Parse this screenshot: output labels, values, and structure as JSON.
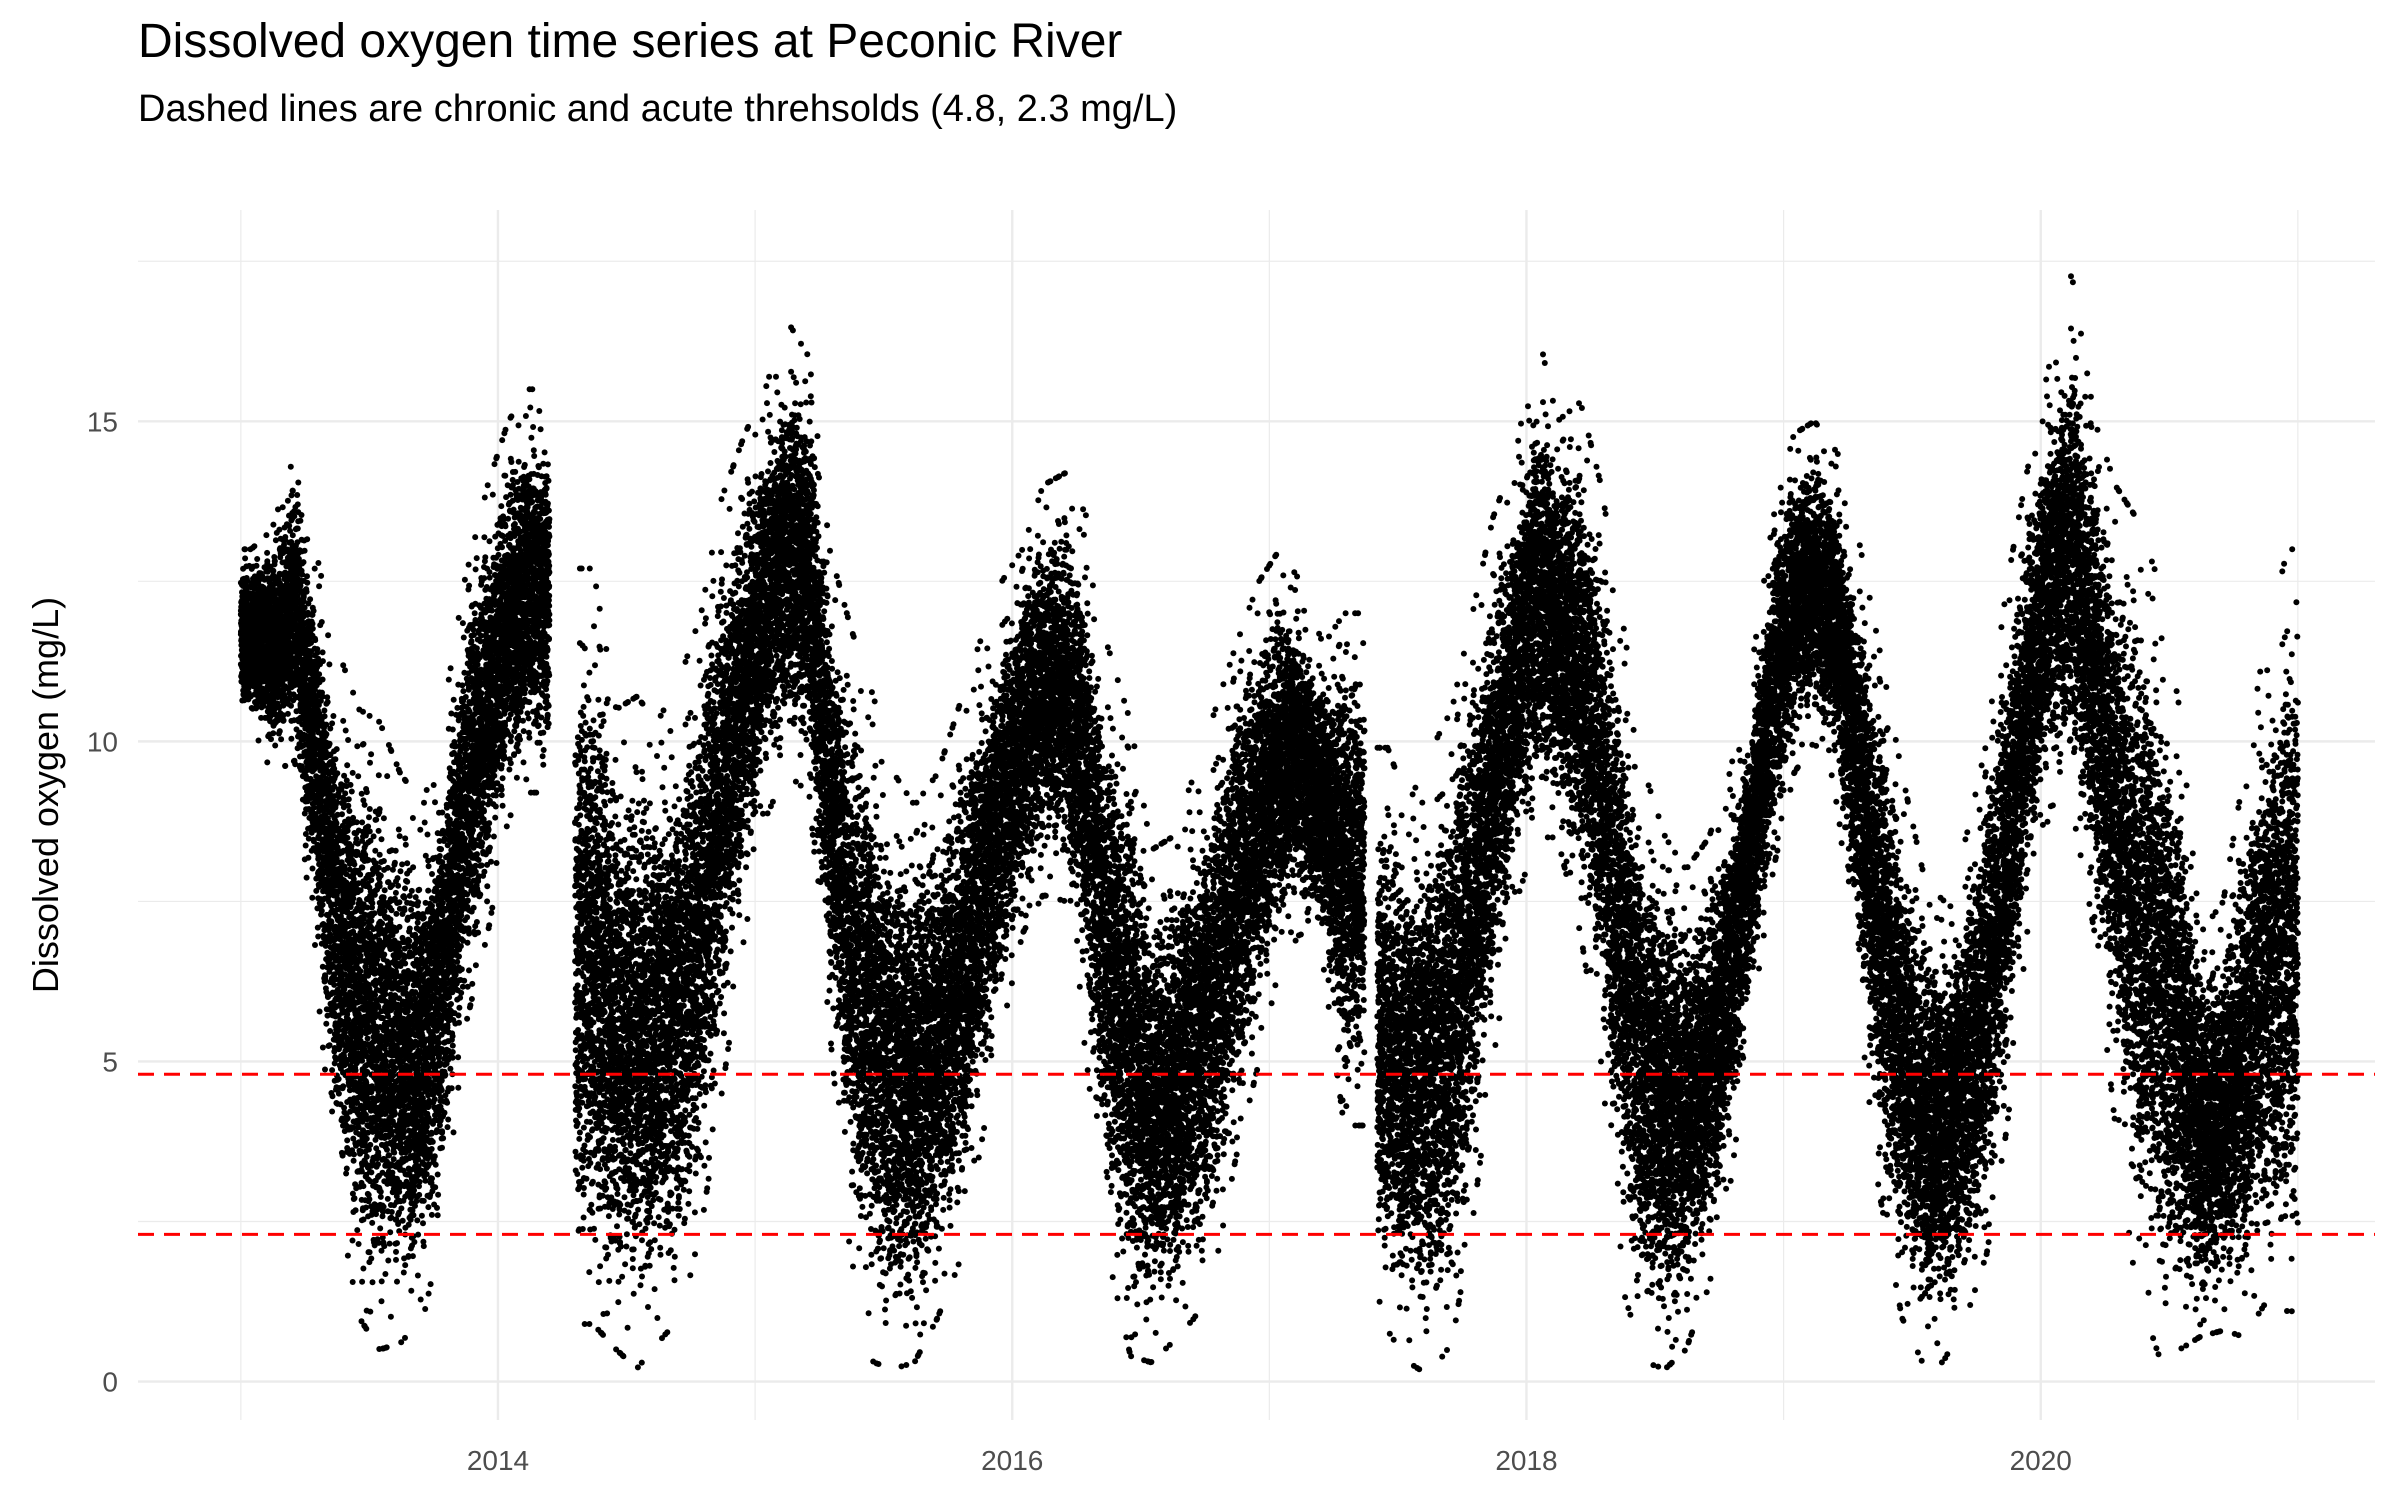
{
  "title": "Dissolved oxygen time series at Peconic River",
  "subtitle": "Dashed lines are chronic and acute threhsolds (4.8, 2.3 mg/L)",
  "chart_data": {
    "type": "scatter",
    "title": "Dissolved oxygen time series at Peconic River",
    "subtitle": "Dashed lines are chronic and acute threhsolds (4.8, 2.3 mg/L)",
    "xlabel": "",
    "ylabel": "Dissolved oxygen (mg/L)",
    "x_ticks": [
      "2014",
      "2016",
      "2018",
      "2020"
    ],
    "y_ticks": [
      0,
      5,
      10,
      15
    ],
    "xlim": [
      2012.6,
      2021.3
    ],
    "ylim": [
      -0.6,
      18.3
    ],
    "grid": true,
    "legend": "none",
    "colors": {
      "points": "#000000",
      "thresholds": "#ff0000",
      "grid": "#ebebeb"
    },
    "thresholds": [
      {
        "label": "chronic",
        "value": 4.8
      },
      {
        "label": "acute",
        "value": 2.3
      }
    ],
    "segments": [
      {
        "start": 2013.0,
        "end": 2014.2
      },
      {
        "start": 2014.3,
        "end": 2017.37
      },
      {
        "start": 2017.42,
        "end": 2021.0
      }
    ],
    "monthly_summary": {
      "x": [
        2013.04,
        2013.12,
        2013.21,
        2013.29,
        2013.37,
        2013.46,
        2013.54,
        2013.62,
        2013.71,
        2013.79,
        2013.87,
        2013.96,
        2014.04,
        2014.12,
        2014.37,
        2014.46,
        2014.54,
        2014.62,
        2014.71,
        2014.79,
        2014.87,
        2014.96,
        2015.04,
        2015.12,
        2015.21,
        2015.29,
        2015.37,
        2015.46,
        2015.54,
        2015.62,
        2015.71,
        2015.79,
        2015.87,
        2015.96,
        2016.04,
        2016.12,
        2016.21,
        2016.29,
        2016.37,
        2016.46,
        2016.54,
        2016.62,
        2016.71,
        2016.79,
        2016.87,
        2016.96,
        2017.04,
        2017.12,
        2017.21,
        2017.29,
        2017.46,
        2017.54,
        2017.62,
        2017.71,
        2017.79,
        2017.87,
        2017.96,
        2018.04,
        2018.12,
        2018.21,
        2018.29,
        2018.37,
        2018.46,
        2018.54,
        2018.62,
        2018.71,
        2018.79,
        2018.87,
        2018.96,
        2019.04,
        2019.12,
        2019.21,
        2019.29,
        2019.37,
        2019.46,
        2019.54,
        2019.62,
        2019.71,
        2019.79,
        2019.87,
        2019.96,
        2020.04,
        2020.12,
        2020.21,
        2020.29,
        2020.37,
        2020.46,
        2020.54,
        2020.62,
        2020.71,
        2020.79,
        2020.87,
        2020.96
      ],
      "min": [
        10.3,
        9.5,
        9.7,
        6.5,
        3.0,
        1.0,
        0.5,
        0.6,
        1.0,
        2.5,
        5.5,
        7.0,
        8.8,
        9.2,
        0.9,
        0.5,
        0.2,
        0.6,
        1.0,
        2.4,
        4.5,
        7.0,
        8.8,
        9.5,
        9.2,
        5.5,
        2.0,
        0.3,
        0.2,
        0.3,
        1.0,
        1.8,
        3.5,
        5.5,
        7.0,
        7.6,
        7.5,
        5.0,
        2.0,
        0.4,
        0.3,
        0.6,
        1.0,
        1.8,
        3.5,
        5.0,
        6.5,
        7.0,
        6.5,
        4.0,
        0.8,
        0.3,
        0.1,
        0.6,
        2.5,
        5.0,
        7.5,
        8.5,
        8.5,
        7.0,
        5.0,
        1.5,
        0.3,
        0.2,
        0.5,
        1.5,
        3.0,
        5.5,
        8.0,
        9.5,
        10.0,
        9.0,
        6.0,
        3.0,
        1.0,
        0.3,
        0.3,
        1.0,
        2.0,
        4.0,
        7.5,
        9.0,
        9.0,
        7.0,
        4.0,
        1.5,
        0.4,
        0.5,
        0.7,
        0.8,
        0.7,
        1.2,
        1.1
      ],
      "max": [
        13.0,
        13.3,
        14.5,
        13.0,
        11.5,
        10.5,
        10.3,
        9.5,
        9.0,
        10.5,
        12.5,
        14.0,
        15.0,
        15.5,
        12.7,
        10.5,
        10.7,
        10.3,
        11.0,
        12.0,
        13.8,
        14.8,
        15.5,
        16.6,
        16.0,
        13.0,
        11.8,
        10.7,
        9.5,
        9.0,
        9.5,
        10.5,
        11.5,
        12.5,
        13.0,
        14.0,
        14.2,
        13.5,
        11.5,
        10.3,
        8.3,
        8.5,
        9.5,
        10.5,
        11.5,
        12.5,
        13.0,
        12.5,
        11.5,
        12.0,
        9.9,
        9.0,
        9.8,
        10.5,
        12.0,
        13.5,
        14.5,
        16.5,
        15.0,
        15.3,
        14.0,
        12.0,
        9.5,
        8.5,
        8.0,
        8.5,
        9.5,
        11.0,
        13.5,
        14.8,
        15.0,
        14.5,
        13.2,
        11.5,
        9.5,
        8.0,
        7.5,
        8.5,
        10.0,
        12.5,
        14.5,
        16.0,
        17.3,
        15.0,
        14.0,
        13.5,
        12.5,
        10.5,
        7.0,
        7.5,
        9.5,
        11.5,
        13.0
      ]
    }
  }
}
